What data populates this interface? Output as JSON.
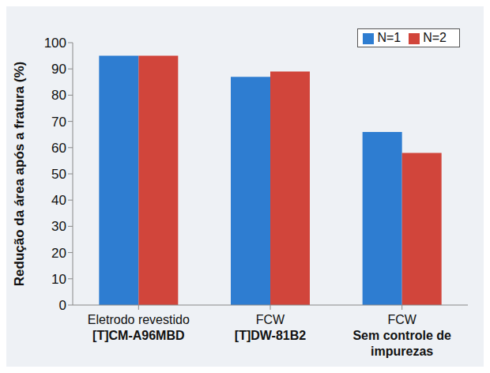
{
  "chart_data": {
    "type": "bar",
    "ylabel": "Redução da área após a fratura (%)",
    "categories": [
      "Eletrodo revestido\n[T]CM-A96MBD",
      "FCW\n[T]DW-81B2",
      "FCW\nSem controle de\nimpurezas"
    ],
    "series": [
      {
        "name": "N=1",
        "color": "#2e7dd1",
        "values": [
          95,
          87,
          66
        ]
      },
      {
        "name": "N=2",
        "color": "#d1453b",
        "values": [
          95,
          89,
          58
        ]
      }
    ],
    "ylim": [
      0,
      100
    ],
    "yticks": [
      0,
      10,
      20,
      30,
      40,
      50,
      60,
      70,
      80,
      90,
      100
    ],
    "grid": false,
    "legend": "upper right"
  }
}
